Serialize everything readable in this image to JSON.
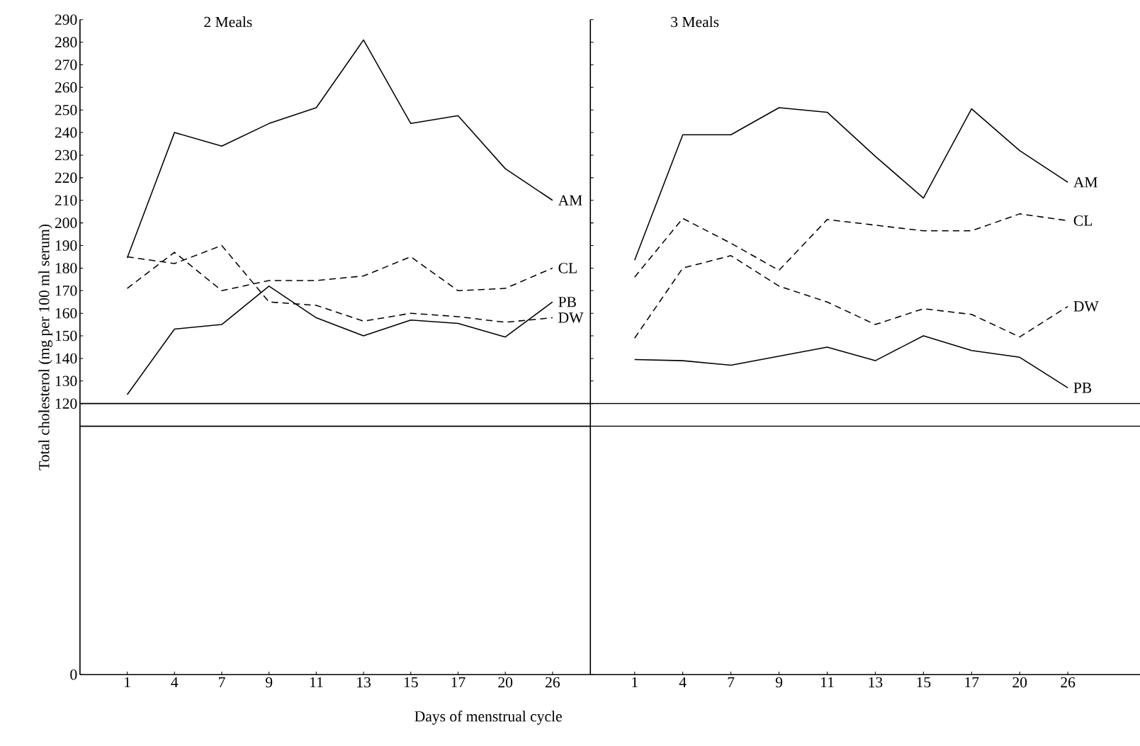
{
  "chart_data": [
    {
      "type": "line",
      "title": "2 Meals",
      "xlabel": "Days of menstrual cycle",
      "ylabel": "Total cholesterol (mg per 100 ml serum)",
      "categories": [
        "1",
        "4",
        "7",
        "9",
        "11",
        "13",
        "15",
        "17",
        "20",
        "26"
      ],
      "ylim": [
        0,
        290
      ],
      "yticks": [
        0,
        120,
        130,
        140,
        150,
        160,
        170,
        180,
        190,
        200,
        210,
        220,
        230,
        240,
        250,
        260,
        270,
        280,
        290
      ],
      "ref_lines": [
        {
          "axis": "y",
          "value": 120,
          "color": "#000000"
        },
        {
          "axis": "y",
          "value": 110,
          "color": "#000000"
        }
      ],
      "series": [
        {
          "name": "AM",
          "color": "#000000",
          "line_style": "solid",
          "values": [
            184.5,
            240,
            234,
            244,
            251,
            281,
            244,
            247.5,
            224,
            210
          ]
        },
        {
          "name": "CL",
          "color": "#000000",
          "line_style": "dashed",
          "values": [
            171,
            187,
            170,
            174.5,
            174.5,
            176.5,
            185,
            170,
            171,
            180
          ]
        },
        {
          "name": "DW",
          "color": "#000000",
          "line_style": "dashed",
          "values": [
            185,
            182,
            190,
            165,
            163.5,
            156.5,
            160,
            158.5,
            156,
            158
          ]
        },
        {
          "name": "PB",
          "color": "#000000",
          "line_style": "solid",
          "values": [
            124,
            153,
            155,
            172,
            158,
            150,
            157,
            155.5,
            149.5,
            165
          ]
        }
      ]
    },
    {
      "type": "line",
      "title": "3 Meals",
      "tick_labels": "x",
      "categories": [
        "1",
        "4",
        "7",
        "9",
        "11",
        "13",
        "15",
        "17",
        "20",
        "26"
      ],
      "ylim": [
        0,
        290
      ],
      "yticks": [
        0,
        120,
        130,
        140,
        150,
        160,
        170,
        180,
        190,
        200,
        210,
        220,
        230,
        240,
        250,
        260,
        270,
        280,
        290
      ],
      "ref_lines": [
        {
          "axis": "y",
          "value": 120,
          "color": "#000000"
        },
        {
          "axis": "y",
          "value": 110,
          "color": "#000000"
        }
      ],
      "series": [
        {
          "name": "AM",
          "color": "#000000",
          "line_style": "solid",
          "values": [
            183.5,
            239,
            239,
            251,
            249,
            229.5,
            211,
            250.5,
            232,
            218
          ]
        },
        {
          "name": "CL",
          "color": "#000000",
          "line_style": "dashed",
          "values": [
            176,
            202,
            191,
            179,
            201.5,
            199,
            196.5,
            196.5,
            204,
            201
          ]
        },
        {
          "name": "DW",
          "color": "#000000",
          "line_style": "dashed",
          "values": [
            149,
            180,
            185.5,
            172,
            165,
            155,
            162,
            159.5,
            149.5,
            163
          ]
        },
        {
          "name": "PB",
          "color": "#000000",
          "line_style": "solid",
          "values": [
            139.5,
            139,
            137,
            141,
            145,
            139,
            150,
            143.5,
            140.5,
            127
          ]
        }
      ]
    }
  ]
}
